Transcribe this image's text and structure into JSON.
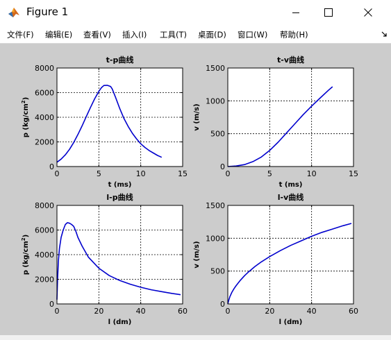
{
  "window": {
    "title": "Figure 1",
    "controls": {
      "minimize": "minimize-icon",
      "maximize": "maximize-icon",
      "close": "close-icon"
    }
  },
  "menu": {
    "items": [
      "文件(F)",
      "编辑(E)",
      "查看(V)",
      "插入(I)",
      "工具(T)",
      "桌面(D)",
      "窗口(W)",
      "帮助(H)"
    ],
    "dock_icon": "dock-arrow-icon"
  },
  "colors": {
    "line": "#0000cd",
    "figure_bg": "#cccccc",
    "axes_bg": "#ffffff"
  },
  "chart_data": [
    {
      "type": "line",
      "title": "t-p曲线",
      "xlabel": "t (ms)",
      "ylabel_main": "p (kg/cm",
      "ylabel_sup": "2",
      "ylabel_end": ")",
      "xlim": [
        0,
        15
      ],
      "ylim": [
        0,
        8000
      ],
      "xticks": [
        0,
        5,
        10,
        15
      ],
      "yticks": [
        0,
        2000,
        4000,
        6000,
        8000
      ],
      "grid": true,
      "series": [
        {
          "x": [
            0,
            0.5,
            1,
            1.5,
            2,
            2.5,
            3,
            3.5,
            4,
            4.5,
            5,
            5.3,
            5.6,
            6,
            6.4,
            6.6,
            7,
            7.5,
            8,
            8.5,
            9,
            9.5,
            10,
            10.5,
            11,
            11.5,
            12,
            12.5
          ],
          "y": [
            350,
            600,
            950,
            1400,
            1950,
            2600,
            3300,
            4050,
            4800,
            5500,
            6100,
            6400,
            6580,
            6600,
            6500,
            6300,
            5600,
            4700,
            3900,
            3250,
            2700,
            2250,
            1850,
            1550,
            1300,
            1100,
            900,
            750
          ]
        }
      ]
    },
    {
      "type": "line",
      "title": "t-v曲线",
      "xlabel": "t (ms)",
      "ylabel_main": "v (m/s)",
      "xlim": [
        0,
        15
      ],
      "ylim": [
        0,
        1500
      ],
      "xticks": [
        0,
        5,
        10,
        15
      ],
      "yticks": [
        0,
        500,
        1000,
        1500
      ],
      "grid": true,
      "series": [
        {
          "x": [
            0,
            1,
            2,
            3,
            4,
            5,
            6,
            7,
            8,
            9,
            10,
            11,
            12,
            12.5
          ],
          "y": [
            0,
            8,
            30,
            75,
            145,
            245,
            370,
            510,
            650,
            790,
            920,
            1040,
            1160,
            1215
          ]
        }
      ]
    },
    {
      "type": "line",
      "title": "l-p曲线",
      "xlabel": "l (dm)",
      "ylabel_main": "p (kg/cm",
      "ylabel_sup": "2",
      "ylabel_end": ")",
      "xlim": [
        0,
        60
      ],
      "ylim": [
        0,
        8000
      ],
      "xticks": [
        0,
        20,
        40,
        60
      ],
      "yticks": [
        0,
        2000,
        4000,
        6000,
        8000
      ],
      "grid": true,
      "series": [
        {
          "x": [
            0,
            0.3,
            0.7,
            1.2,
            2,
            3,
            4,
            5,
            6,
            7,
            8,
            9,
            10,
            12,
            15,
            20,
            25,
            30,
            35,
            40,
            45,
            50,
            55,
            59
          ],
          "y": [
            350,
            2000,
            3500,
            4500,
            5400,
            6000,
            6450,
            6600,
            6550,
            6450,
            6300,
            5900,
            5400,
            4700,
            3800,
            2900,
            2300,
            1900,
            1600,
            1350,
            1150,
            1000,
            850,
            750
          ]
        }
      ]
    },
    {
      "type": "line",
      "title": "l-v曲线",
      "xlabel": "l (dm)",
      "ylabel_main": "v (m/s)",
      "xlim": [
        0,
        60
      ],
      "ylim": [
        0,
        1500
      ],
      "xticks": [
        0,
        20,
        40,
        60
      ],
      "yticks": [
        0,
        500,
        1000,
        1500
      ],
      "grid": true,
      "series": [
        {
          "x": [
            0,
            0.5,
            1,
            2,
            3,
            4,
            6,
            8,
            10,
            13,
            16,
            20,
            25,
            30,
            35,
            40,
            45,
            50,
            55,
            59
          ],
          "y": [
            0,
            60,
            110,
            180,
            235,
            280,
            360,
            430,
            490,
            570,
            640,
            720,
            810,
            890,
            960,
            1030,
            1090,
            1140,
            1190,
            1225
          ]
        }
      ]
    }
  ]
}
